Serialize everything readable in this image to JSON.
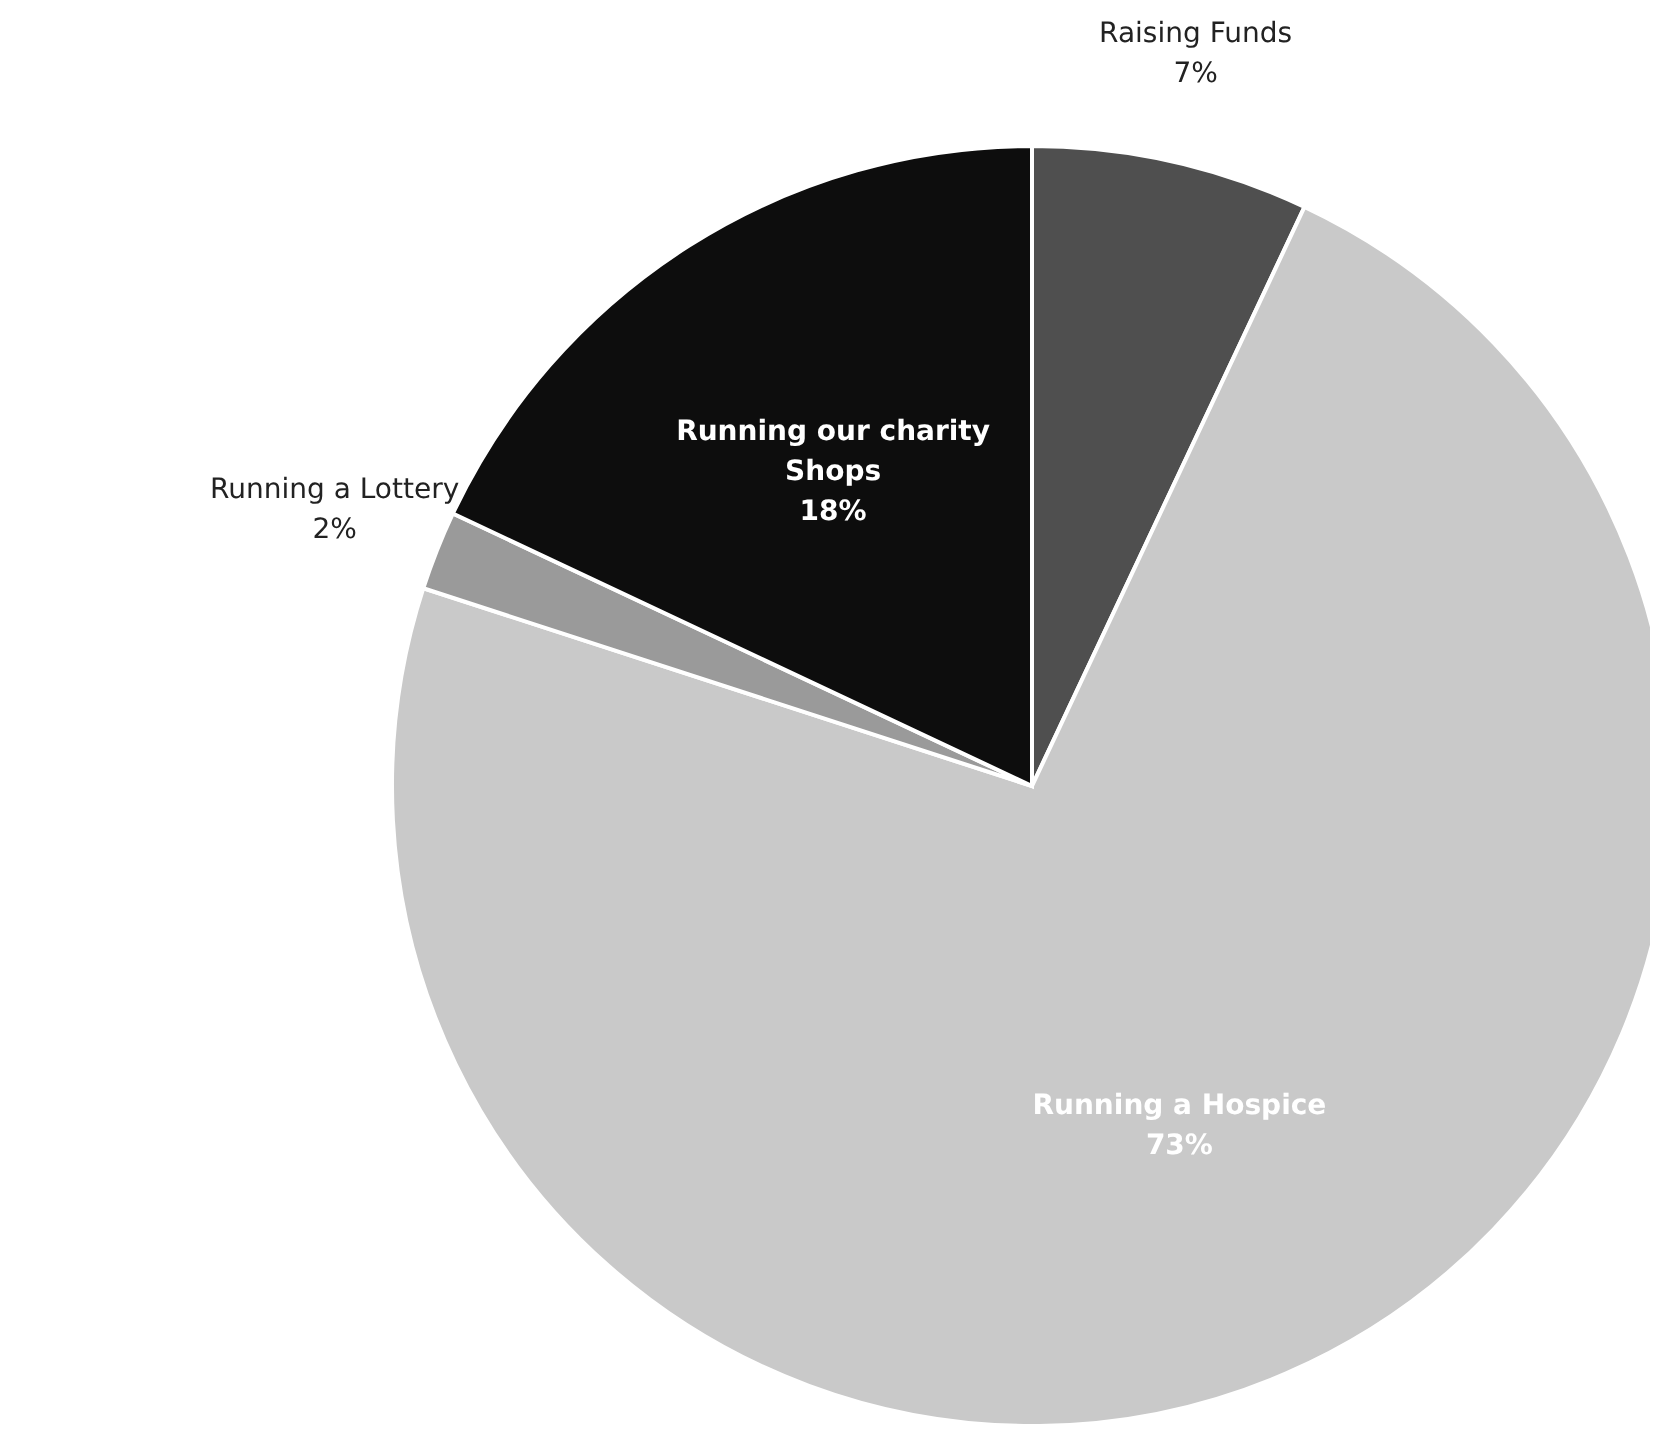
{
  "chart_data": {
    "type": "pie",
    "categories": [
      "Raising Funds",
      "Running a Hospice",
      "Running a Lottery",
      "Running our charity Shops"
    ],
    "values": [
      7,
      73,
      2,
      18
    ],
    "value_labels": [
      "7%",
      "73%",
      "2%",
      "18%"
    ],
    "colors": [
      "#4f4f4f",
      "#c9c9c9",
      "#9a9a9a",
      "#0d0d0d"
    ],
    "legend": false
  }
}
